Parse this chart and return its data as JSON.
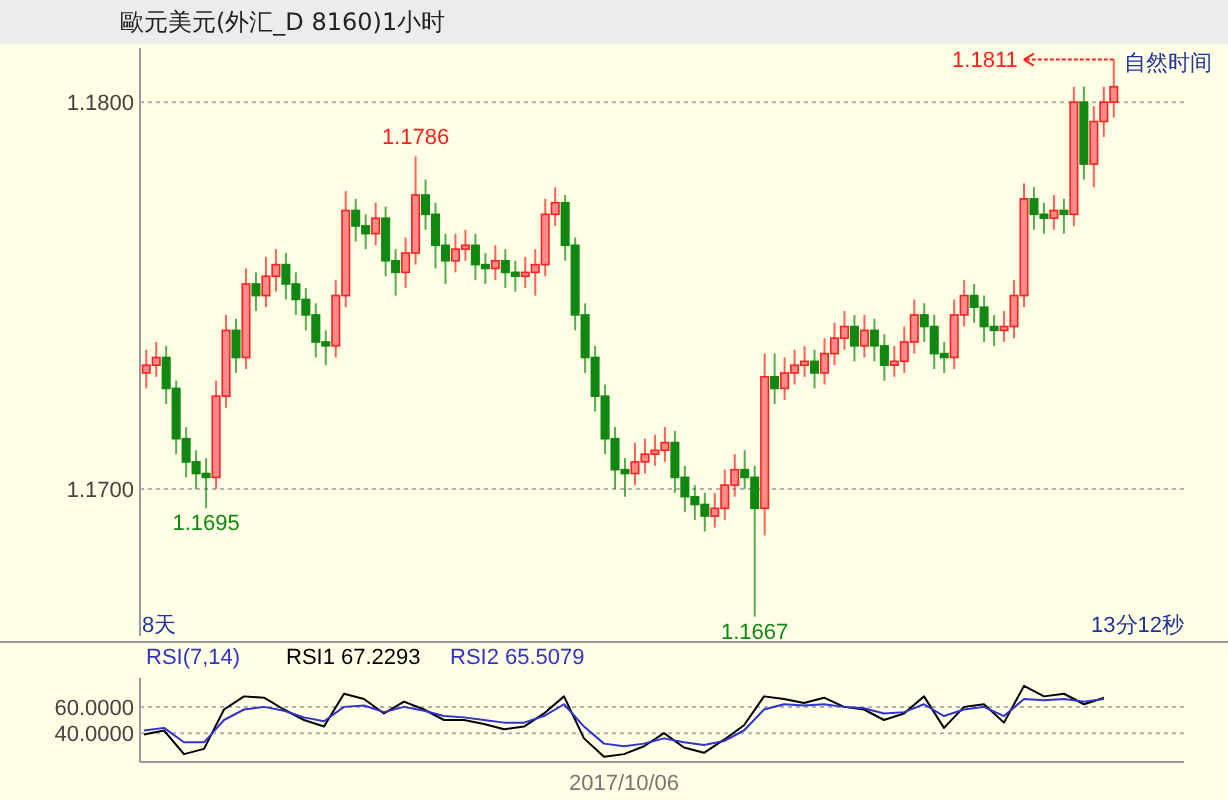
{
  "chart_data": [
    {
      "type": "candlestick",
      "title": "歐元美元(外汇_D 8160)1小时",
      "categories": [
        null,
        null,
        null,
        null,
        null,
        null,
        null,
        null,
        null,
        null,
        null,
        null,
        null,
        null,
        null,
        null,
        null,
        null,
        null,
        null,
        null,
        null,
        null,
        null,
        null,
        null,
        null,
        null,
        null,
        null,
        null,
        null,
        null,
        null,
        null,
        null,
        null,
        null,
        null,
        null,
        null,
        null,
        null,
        null,
        null,
        null,
        null,
        null,
        null,
        null,
        null,
        null,
        null,
        null,
        null,
        null,
        null,
        null,
        null,
        null,
        null,
        null,
        null,
        null,
        null,
        null,
        null,
        null,
        null,
        null,
        null,
        null,
        null,
        null,
        null,
        null,
        null,
        null,
        null,
        null,
        null,
        null,
        null,
        null,
        null,
        null,
        null,
        null,
        null,
        null,
        null,
        null,
        null,
        null,
        null,
        null,
        null,
        null
      ],
      "ohlc": [
        [
          1.173,
          1.1736,
          1.1726,
          1.1732
        ],
        [
          1.1732,
          1.1738,
          1.1729,
          1.1734
        ],
        [
          1.1734,
          1.1737,
          1.1722,
          1.1726
        ],
        [
          1.1726,
          1.1728,
          1.1709,
          1.1713
        ],
        [
          1.1713,
          1.1716,
          1.1703,
          1.1707
        ],
        [
          1.1707,
          1.171,
          1.17,
          1.1704
        ],
        [
          1.1704,
          1.1708,
          1.1695,
          1.1703
        ],
        [
          1.1703,
          1.1728,
          1.17,
          1.1724
        ],
        [
          1.1724,
          1.1745,
          1.1721,
          1.1741
        ],
        [
          1.1741,
          1.1744,
          1.173,
          1.1734
        ],
        [
          1.1734,
          1.1757,
          1.1731,
          1.1753
        ],
        [
          1.1753,
          1.1756,
          1.1746,
          1.175
        ],
        [
          1.175,
          1.176,
          1.1747,
          1.1755
        ],
        [
          1.1755,
          1.1762,
          1.1751,
          1.1758
        ],
        [
          1.1758,
          1.1761,
          1.1749,
          1.1753
        ],
        [
          1.1753,
          1.1756,
          1.1745,
          1.1749
        ],
        [
          1.1749,
          1.1752,
          1.1741,
          1.1745
        ],
        [
          1.1745,
          1.1748,
          1.1734,
          1.1738
        ],
        [
          1.1738,
          1.1741,
          1.1732,
          1.1737
        ],
        [
          1.1737,
          1.1754,
          1.1734,
          1.175
        ],
        [
          1.175,
          1.1777,
          1.1747,
          1.1772
        ],
        [
          1.1772,
          1.1775,
          1.1764,
          1.1768
        ],
        [
          1.1768,
          1.1771,
          1.1762,
          1.1766
        ],
        [
          1.1766,
          1.1774,
          1.1763,
          1.177
        ],
        [
          1.177,
          1.1773,
          1.1755,
          1.1759
        ],
        [
          1.1759,
          1.1762,
          1.175,
          1.1756
        ],
        [
          1.1756,
          1.1765,
          1.1752,
          1.1761
        ],
        [
          1.1761,
          1.1786,
          1.1758,
          1.1776
        ],
        [
          1.1776,
          1.178,
          1.1767,
          1.1771
        ],
        [
          1.1771,
          1.1774,
          1.1757,
          1.1763
        ],
        [
          1.1763,
          1.1766,
          1.1753,
          1.1759
        ],
        [
          1.1759,
          1.1766,
          1.1756,
          1.1762
        ],
        [
          1.1762,
          1.1767,
          1.1759,
          1.1763
        ],
        [
          1.1763,
          1.1766,
          1.1754,
          1.1758
        ],
        [
          1.1758,
          1.1761,
          1.1753,
          1.1757
        ],
        [
          1.1757,
          1.1763,
          1.1754,
          1.1759
        ],
        [
          1.1759,
          1.1762,
          1.1752,
          1.1756
        ],
        [
          1.1756,
          1.1759,
          1.1751,
          1.1755
        ],
        [
          1.1755,
          1.176,
          1.1752,
          1.1756
        ],
        [
          1.1756,
          1.1762,
          1.175,
          1.1758
        ],
        [
          1.1758,
          1.1775,
          1.1755,
          1.1771
        ],
        [
          1.1771,
          1.1778,
          1.1768,
          1.1774
        ],
        [
          1.1774,
          1.1776,
          1.1759,
          1.1763
        ],
        [
          1.1763,
          1.1765,
          1.1741,
          1.1745
        ],
        [
          1.1745,
          1.1748,
          1.173,
          1.1734
        ],
        [
          1.1734,
          1.1737,
          1.172,
          1.1724
        ],
        [
          1.1724,
          1.1727,
          1.1709,
          1.1713
        ],
        [
          1.1713,
          1.1716,
          1.17,
          1.1705
        ],
        [
          1.1705,
          1.1708,
          1.1698,
          1.1704
        ],
        [
          1.1704,
          1.1712,
          1.1701,
          1.1707
        ],
        [
          1.1707,
          1.1713,
          1.1704,
          1.1709
        ],
        [
          1.1709,
          1.1714,
          1.1706,
          1.171
        ],
        [
          1.171,
          1.1716,
          1.1707,
          1.1712
        ],
        [
          1.1712,
          1.1715,
          1.1699,
          1.1703
        ],
        [
          1.1703,
          1.1706,
          1.1694,
          1.1698
        ],
        [
          1.1698,
          1.1701,
          1.1692,
          1.1696
        ],
        [
          1.1696,
          1.1699,
          1.1689,
          1.1693
        ],
        [
          1.1693,
          1.1699,
          1.169,
          1.1695
        ],
        [
          1.1695,
          1.1705,
          1.1692,
          1.1701
        ],
        [
          1.1701,
          1.1709,
          1.1698,
          1.1705
        ],
        [
          1.1705,
          1.171,
          1.17,
          1.1703
        ],
        [
          1.1703,
          1.1706,
          1.1667,
          1.1695
        ],
        [
          1.1695,
          1.1735,
          1.1688,
          1.1729
        ],
        [
          1.1729,
          1.1735,
          1.1722,
          1.1726
        ],
        [
          1.1726,
          1.1734,
          1.1723,
          1.173
        ],
        [
          1.173,
          1.1736,
          1.1727,
          1.1732
        ],
        [
          1.1732,
          1.1737,
          1.1729,
          1.1733
        ],
        [
          1.1733,
          1.1736,
          1.1726,
          1.173
        ],
        [
          1.173,
          1.1739,
          1.1727,
          1.1735
        ],
        [
          1.1735,
          1.1743,
          1.1732,
          1.1739
        ],
        [
          1.1739,
          1.1746,
          1.1736,
          1.1742
        ],
        [
          1.1742,
          1.1745,
          1.1733,
          1.1737
        ],
        [
          1.1737,
          1.1745,
          1.1734,
          1.1741
        ],
        [
          1.1741,
          1.1744,
          1.1733,
          1.1737
        ],
        [
          1.1737,
          1.174,
          1.1728,
          1.1732
        ],
        [
          1.1732,
          1.1737,
          1.1729,
          1.1733
        ],
        [
          1.1733,
          1.1742,
          1.173,
          1.1738
        ],
        [
          1.1738,
          1.1749,
          1.1735,
          1.1745
        ],
        [
          1.1745,
          1.1748,
          1.1738,
          1.1742
        ],
        [
          1.1742,
          1.1745,
          1.1731,
          1.1735
        ],
        [
          1.1735,
          1.1738,
          1.173,
          1.1734
        ],
        [
          1.1734,
          1.1749,
          1.1731,
          1.1745
        ],
        [
          1.1745,
          1.1754,
          1.1742,
          1.175
        ],
        [
          1.175,
          1.1753,
          1.1743,
          1.1747
        ],
        [
          1.1747,
          1.175,
          1.1738,
          1.1742
        ],
        [
          1.1742,
          1.1745,
          1.1737,
          1.1741
        ],
        [
          1.1741,
          1.1746,
          1.1738,
          1.1742
        ],
        [
          1.1742,
          1.1754,
          1.1739,
          1.175
        ],
        [
          1.175,
          1.1779,
          1.1747,
          1.1775
        ],
        [
          1.1775,
          1.1778,
          1.1767,
          1.1771
        ],
        [
          1.1771,
          1.1774,
          1.1766,
          1.177
        ],
        [
          1.177,
          1.1776,
          1.1767,
          1.1772
        ],
        [
          1.1772,
          1.1775,
          1.1766,
          1.1771
        ],
        [
          1.1771,
          1.1804,
          1.1768,
          1.18
        ],
        [
          1.18,
          1.1804,
          1.178,
          1.1784
        ],
        [
          1.1784,
          1.1799,
          1.1778,
          1.1795
        ],
        [
          1.1795,
          1.1804,
          1.1791,
          1.18
        ],
        [
          1.18,
          1.1811,
          1.1796,
          1.1804
        ]
      ],
      "ylim": [
        1.1662,
        1.1814
      ],
      "yticks": [
        {
          "value": 1.17,
          "label": "1.1700"
        },
        {
          "value": 1.18,
          "label": "1.1800"
        }
      ],
      "grid": "y",
      "annotations": [
        {
          "text": "1.1786",
          "y": 1.1786
        },
        {
          "text": "1.1695",
          "y": 1.1695
        },
        {
          "text": "1.1667",
          "y": 1.1667
        },
        "1.1811",
        "自然时间",
        "8天",
        "13分12秒"
      ]
    },
    {
      "type": "line",
      "title": "RSI(7,14)",
      "xlabel": "2017/10/06",
      "legend": "top left",
      "grid": "y",
      "categories": [
        null,
        null,
        null,
        null,
        null,
        null,
        null,
        null,
        null,
        null,
        null,
        null,
        null,
        null,
        null,
        null,
        null,
        null,
        null,
        null,
        null,
        null,
        null,
        null,
        null,
        null,
        null,
        null,
        null,
        null,
        null,
        null,
        null,
        null,
        null,
        null,
        null,
        null,
        null,
        null,
        null,
        null,
        null,
        null,
        null,
        null,
        null,
        null,
        null
      ],
      "ylim": [
        18,
        82
      ],
      "yticks": [
        {
          "value": 40,
          "label": "40.0000"
        },
        {
          "value": 60,
          "label": "60.0000"
        }
      ],
      "series": [
        {
          "name": "RSI1 67.2293",
          "color": "#000000",
          "values": [
            39,
            42,
            24,
            28,
            58,
            68,
            67,
            58,
            50,
            45,
            70,
            66,
            55,
            64,
            58,
            50,
            50,
            47,
            43,
            45,
            55,
            68,
            36,
            22,
            24,
            30,
            40,
            29,
            25,
            35,
            46,
            68,
            66,
            63,
            67,
            60,
            58,
            50,
            55,
            68,
            44,
            60,
            62,
            48,
            76,
            68,
            70,
            62,
            67
          ]
        },
        {
          "name": "RSI2 65.5079",
          "color": "#3333cc",
          "values": [
            42,
            44,
            33,
            33,
            50,
            58,
            60,
            57,
            52,
            49,
            60,
            61,
            56,
            60,
            57,
            53,
            52,
            50,
            48,
            48,
            53,
            62,
            45,
            32,
            30,
            32,
            36,
            33,
            31,
            34,
            42,
            58,
            62,
            61,
            62,
            60,
            59,
            55,
            56,
            62,
            53,
            58,
            60,
            53,
            66,
            65,
            66,
            64,
            66
          ]
        }
      ]
    }
  ]
}
